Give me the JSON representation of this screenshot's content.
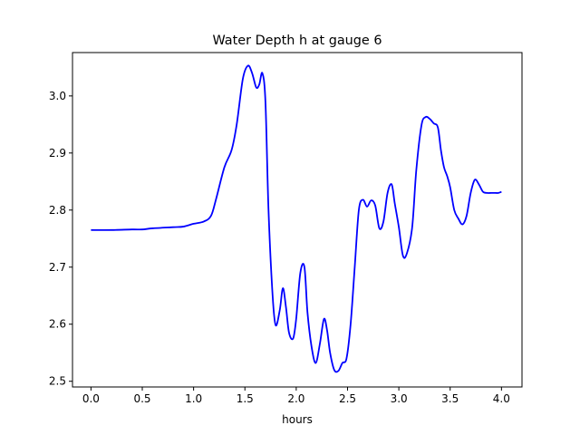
{
  "chart_data": {
    "type": "line",
    "title": "Water Depth h at gauge 6",
    "xlabel": "hours",
    "ylabel": "",
    "xlim": [
      -0.18,
      4.2
    ],
    "ylim": [
      2.49,
      3.076
    ],
    "xticks": [
      0.0,
      0.5,
      1.0,
      1.5,
      2.0,
      2.5,
      3.0,
      3.5,
      4.0
    ],
    "xtick_labels": [
      "0.0",
      "0.5",
      "1.0",
      "1.5",
      "2.0",
      "2.5",
      "3.0",
      "3.5",
      "4.0"
    ],
    "yticks": [
      2.5,
      2.6,
      2.7,
      2.8,
      2.9,
      3.0
    ],
    "ytick_labels": [
      "2.5",
      "2.6",
      "2.7",
      "2.8",
      "2.9",
      "3.0"
    ],
    "grid": false,
    "series": [
      {
        "color": "#0000ff",
        "x": [
          0.0,
          0.2,
          0.4,
          0.5,
          0.6,
          0.8,
          0.9,
          1.0,
          1.1,
          1.17,
          1.22,
          1.3,
          1.37,
          1.42,
          1.48,
          1.53,
          1.57,
          1.61,
          1.64,
          1.67,
          1.7,
          1.73,
          1.77,
          1.8,
          1.84,
          1.87,
          1.9,
          1.93,
          1.97,
          2.0,
          2.04,
          2.08,
          2.11,
          2.15,
          2.19,
          2.23,
          2.27,
          2.3,
          2.33,
          2.37,
          2.41,
          2.45,
          2.49,
          2.53,
          2.57,
          2.61,
          2.65,
          2.69,
          2.73,
          2.77,
          2.81,
          2.85,
          2.89,
          2.93,
          2.96,
          3.0,
          3.04,
          3.08,
          3.13,
          3.17,
          3.22,
          3.26,
          3.3,
          3.34,
          3.38,
          3.41,
          3.44,
          3.47,
          3.5,
          3.54,
          3.58,
          3.62,
          3.66,
          3.7,
          3.74,
          3.78,
          3.82,
          3.86,
          3.9,
          3.94,
          3.97,
          4.0
        ],
        "y": [
          2.765,
          2.765,
          2.766,
          2.766,
          2.768,
          2.77,
          2.771,
          2.776,
          2.78,
          2.79,
          2.82,
          2.875,
          2.905,
          2.95,
          3.03,
          3.053,
          3.04,
          3.015,
          3.02,
          3.04,
          2.99,
          2.8,
          2.65,
          2.598,
          2.625,
          2.663,
          2.63,
          2.585,
          2.575,
          2.61,
          2.69,
          2.7,
          2.62,
          2.56,
          2.532,
          2.565,
          2.609,
          2.59,
          2.55,
          2.52,
          2.518,
          2.532,
          2.54,
          2.6,
          2.7,
          2.8,
          2.818,
          2.806,
          2.817,
          2.808,
          2.768,
          2.78,
          2.83,
          2.845,
          2.812,
          2.77,
          2.72,
          2.725,
          2.77,
          2.87,
          2.948,
          2.963,
          2.96,
          2.952,
          2.945,
          2.905,
          2.875,
          2.86,
          2.84,
          2.8,
          2.785,
          2.775,
          2.79,
          2.83,
          2.853,
          2.845,
          2.832,
          2.83,
          2.83,
          2.83,
          2.83,
          2.832
        ]
      }
    ]
  }
}
